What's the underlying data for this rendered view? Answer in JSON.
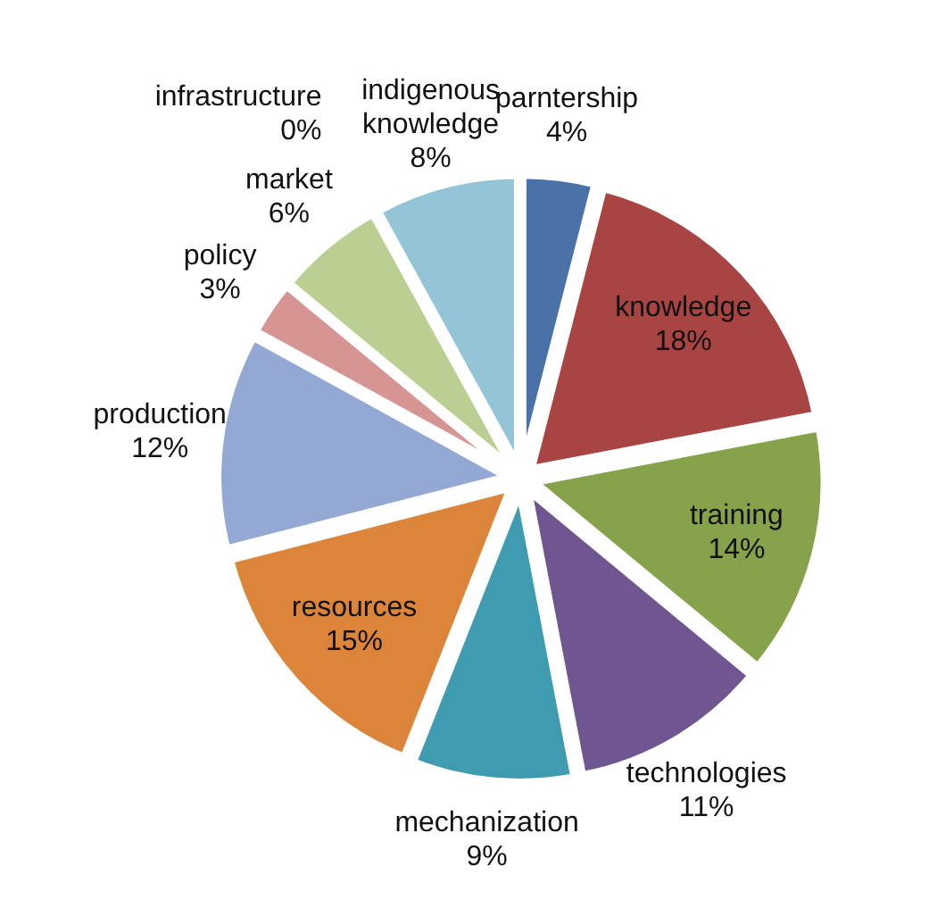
{
  "chart_data": {
    "type": "pie",
    "categories": [
      "parntership",
      "knowledge",
      "training",
      "technologies",
      "mechanization",
      "resources",
      "production",
      "policy",
      "market",
      "infrastructure",
      "indigenous knowledge"
    ],
    "values": [
      4,
      18,
      14,
      11,
      9,
      15,
      12,
      3,
      6,
      0,
      8
    ],
    "value_labels": [
      "4%",
      "18%",
      "14%",
      "11%",
      "9%",
      "15%",
      "12%",
      "3%",
      "6%",
      "0%",
      "8%"
    ],
    "colors": [
      "#4a72a8",
      "#a84442",
      "#86a24a",
      "#6f5690",
      "#3f9bb0",
      "#dc843a",
      "#93a9d3",
      "#d69593",
      "#bccf93",
      null,
      "#93c5d6"
    ]
  }
}
